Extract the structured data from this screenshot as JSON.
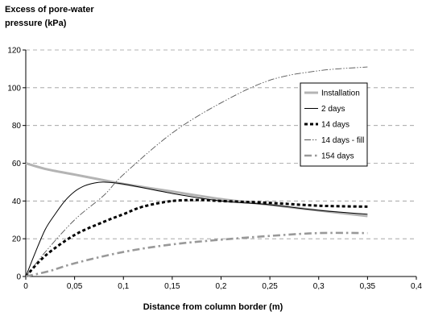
{
  "chart_data": {
    "type": "line",
    "ylabel": "Excess of pore-water pressure (kPa)",
    "ylabel_lines": [
      "Excess of pore-water",
      "pressure (kPa)"
    ],
    "xlabel": "Distance from column border (m)",
    "xlim": [
      0,
      0.4
    ],
    "ylim": [
      0,
      120
    ],
    "xticks": [
      0,
      0.05,
      0.1,
      0.15,
      0.2,
      0.25,
      0.3,
      0.35,
      0.4
    ],
    "xtick_labels": [
      "0",
      "0,05",
      "0,1",
      "0,15",
      "0,2",
      "0,25",
      "0,3",
      "0,35",
      "0,4"
    ],
    "yticks": [
      0,
      20,
      40,
      60,
      80,
      100,
      120
    ],
    "ytick_labels": [
      "0",
      "20",
      "40",
      "60",
      "80",
      "100",
      "120"
    ],
    "grid": "horizontal dashed",
    "legend_position": "right",
    "series": [
      {
        "name": "Installation",
        "color": "#b4b4b4",
        "style": "solid-thick",
        "x": [
          0,
          0.02,
          0.05,
          0.08,
          0.1,
          0.15,
          0.2,
          0.25,
          0.3,
          0.35
        ],
        "y": [
          60,
          57,
          54,
          51,
          49,
          45,
          41,
          38,
          35,
          32
        ]
      },
      {
        "name": "2 days",
        "color": "#000000",
        "style": "solid-thin",
        "x": [
          0,
          0.01,
          0.02,
          0.03,
          0.04,
          0.05,
          0.06,
          0.07,
          0.08,
          0.1,
          0.15,
          0.2,
          0.25,
          0.3,
          0.35
        ],
        "y": [
          0,
          13,
          25,
          33,
          40,
          45,
          48,
          49.5,
          50,
          49,
          44,
          40,
          38,
          35,
          33
        ]
      },
      {
        "name": "14 days",
        "color": "#000000",
        "style": "dotted-thick",
        "x": [
          0,
          0.02,
          0.05,
          0.08,
          0.1,
          0.12,
          0.15,
          0.18,
          0.2,
          0.25,
          0.3,
          0.35
        ],
        "y": [
          0,
          11,
          22,
          29,
          33,
          37,
          40,
          40.5,
          40,
          39,
          37.5,
          37
        ]
      },
      {
        "name": "14 days - fill",
        "color": "#555555",
        "style": "dash-dot-dot-thin",
        "x": [
          0,
          0.02,
          0.05,
          0.08,
          0.1,
          0.15,
          0.2,
          0.25,
          0.3,
          0.35
        ],
        "y": [
          0,
          13,
          30,
          43,
          54,
          76,
          92,
          104,
          109,
          111
        ]
      },
      {
        "name": "154 days",
        "color": "#999999",
        "style": "dash-dot-thick",
        "x": [
          0,
          0.025,
          0.05,
          0.1,
          0.15,
          0.2,
          0.25,
          0.3,
          0.35
        ],
        "y": [
          0,
          3,
          7,
          13,
          17,
          19.5,
          21.5,
          23,
          23
        ]
      }
    ]
  }
}
